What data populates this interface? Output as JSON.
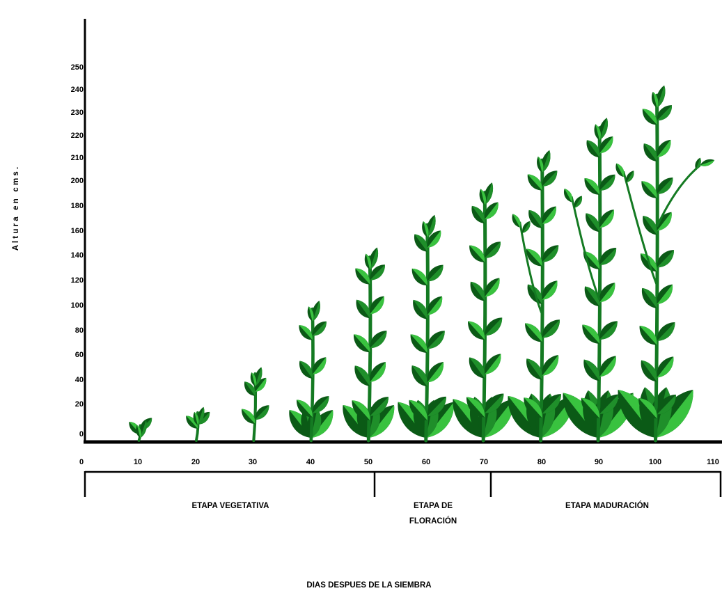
{
  "figure": {
    "y_axis_title": "A l t u r a   e n   c m s .",
    "x_axis_title": "DIAS DESPUES DE LA SIEMBRA",
    "y_ticks": [
      "0",
      "20",
      "40",
      "60",
      "80",
      "100",
      "120",
      "140",
      "160",
      "180",
      "200",
      "210",
      "220",
      "230",
      "240",
      "250"
    ],
    "x_ticks": [
      "0",
      "10",
      "20",
      "30",
      "40",
      "50",
      "60",
      "70",
      "80",
      "90",
      "100",
      "110"
    ],
    "stages": [
      {
        "lines": [
          "ETAPA VEGETATIVA"
        ],
        "from_day": 0,
        "to_day": 50
      },
      {
        "lines": [
          "ETAPA DE",
          "FLORACIÓN"
        ],
        "from_day": 50,
        "to_day": 70
      },
      {
        "lines": [
          "ETAPA MADURACIÓN"
        ],
        "from_day": 70,
        "to_day": 110
      }
    ],
    "plants": [
      {
        "day": 10,
        "height_cm": 10
      },
      {
        "day": 20,
        "height_cm": 20
      },
      {
        "day": 30,
        "height_cm": 50
      },
      {
        "day": 40,
        "height_cm": 100
      },
      {
        "day": 50,
        "height_cm": 140
      },
      {
        "day": 60,
        "height_cm": 165
      },
      {
        "day": 70,
        "height_cm": 190
      },
      {
        "day": 80,
        "height_cm": 215
      },
      {
        "day": 90,
        "height_cm": 240
      },
      {
        "day": 100,
        "height_cm": 265
      }
    ],
    "colors": {
      "leaf_dark": "#0b5a16",
      "leaf_mid": "#1f8f2a",
      "leaf_light": "#39c23f",
      "stem": "#147a22",
      "axis": "#000000"
    }
  }
}
